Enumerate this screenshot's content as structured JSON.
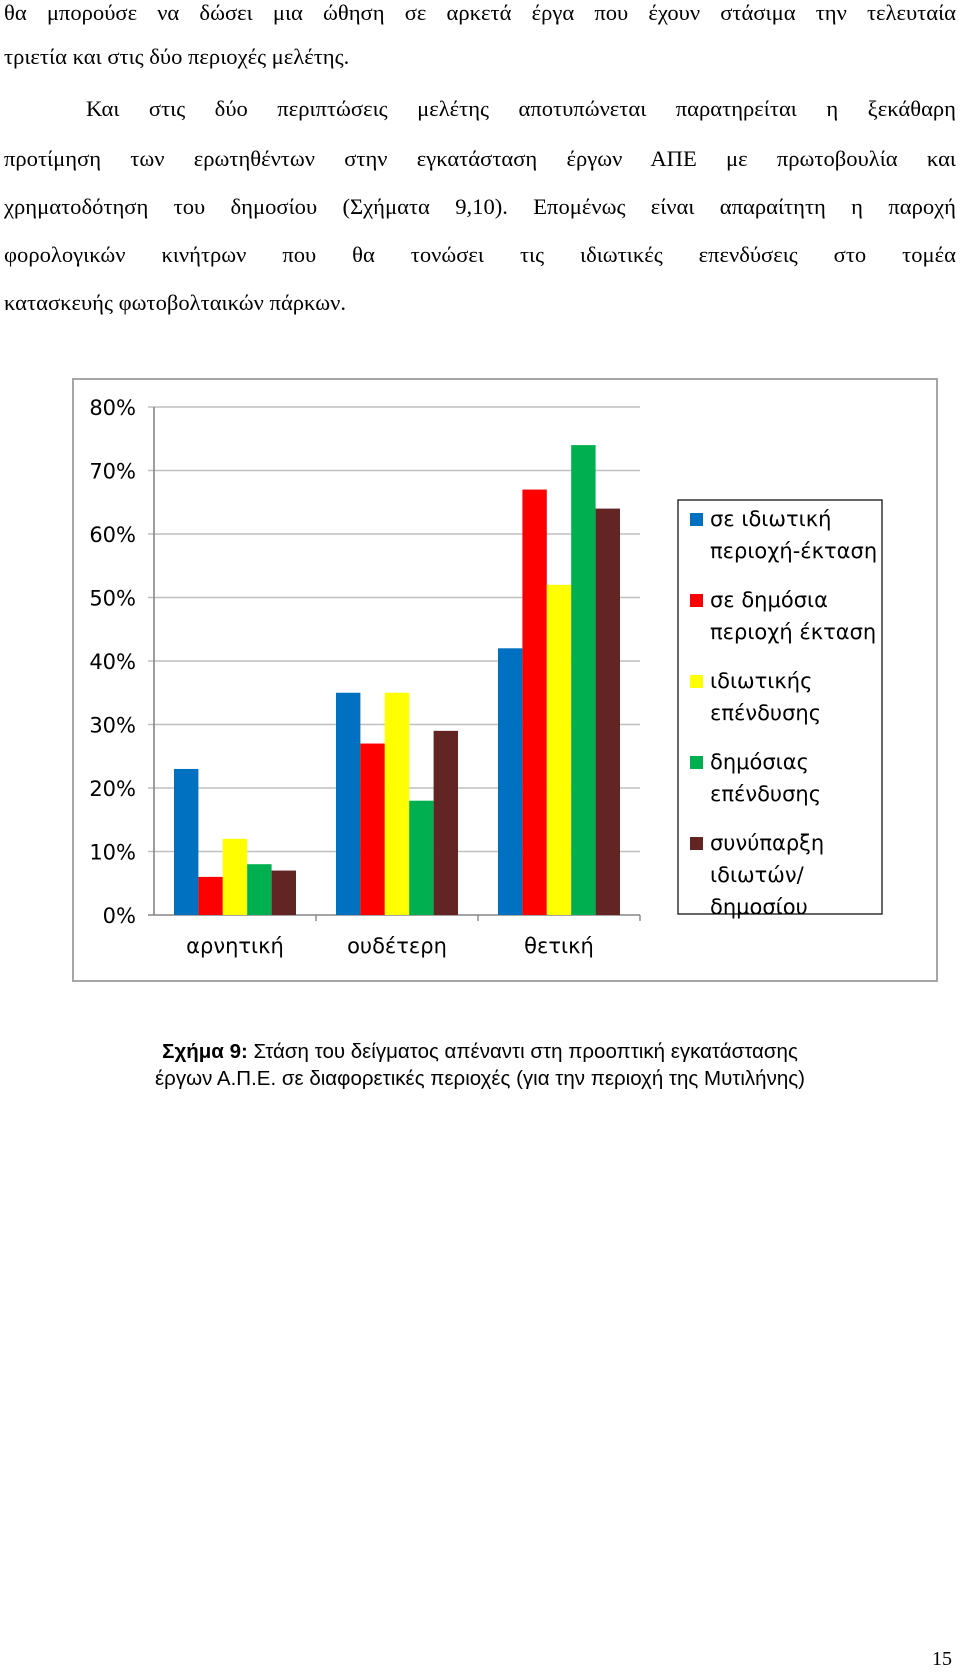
{
  "paragraphs": {
    "p1": [
      "θα μπορούσε να δώσει μια ώθηση σε αρκετά έργα που έχουν στάσιμα την τελευταία",
      "τριετία και στις δύο περιοχές μελέτης."
    ],
    "p2": [
      "Και στις δύο περιπτώσεις μελέτης αποτυπώνεται παρατηρείται η ξεκάθαρη",
      "προτίμηση των ερωτηθέντων στην εγκατάσταση έργων ΑΠΕ με πρωτοβουλία και",
      "χρηματοδότηση του δημοσίου (Σχήματα 9,10). Επομένως είναι απαραίτητη η παροχή",
      "φορολογικών κινήτρων που θα τονώσει τις ιδιωτικές επενδύσεις στο τομέα",
      "κατασκευής φωτοβολταικών πάρκων."
    ]
  },
  "chart_data": {
    "type": "bar",
    "categories": [
      "αρνητική",
      "ουδέτερη",
      "θετική"
    ],
    "ylim": [
      0,
      80
    ],
    "yticks": [
      "0%",
      "10%",
      "20%",
      "30%",
      "40%",
      "50%",
      "60%",
      "70%",
      "80%"
    ],
    "grid": true,
    "legend_position": "right",
    "series": [
      {
        "name": "σε ιδιωτική περιοχή-έκταση",
        "legend_lines": [
          "σε ιδιωτική",
          "περιοχή-έκταση"
        ],
        "color": "#0070c0",
        "values": [
          23,
          35,
          42
        ]
      },
      {
        "name": "σε δημόσια περιοχή έκταση",
        "legend_lines": [
          "σε δημόσια",
          "περιοχή έκταση"
        ],
        "color": "#ff0000",
        "values": [
          6,
          27,
          67
        ]
      },
      {
        "name": "ιδιωτικής επένδυσης",
        "legend_lines": [
          "ιδιωτικής",
          "επένδυσης"
        ],
        "color": "#ffff00",
        "values": [
          12,
          35,
          52
        ]
      },
      {
        "name": "δημόσιας επένδυσης",
        "legend_lines": [
          "δημόσιας",
          "επένδυσης"
        ],
        "color": "#00b050",
        "values": [
          8,
          18,
          74
        ]
      },
      {
        "name": "συνύπαρξη ιδιωτών/ δημοσίου",
        "legend_lines": [
          "συνύπαρξη",
          "ιδιωτών/",
          "δημοσίου"
        ],
        "color": "#632523",
        "values": [
          7,
          29,
          64
        ]
      }
    ]
  },
  "caption": {
    "bold": "Σχήμα 9:",
    "line1": " Στάση του δείγματος απέναντι στη προοπτική εγκατάστασης",
    "line2": "έργων Α.Π.Ε. σε διαφορετικές περιοχές (για την περιοχή της Μυτιλήνης)"
  },
  "page_number": "15"
}
